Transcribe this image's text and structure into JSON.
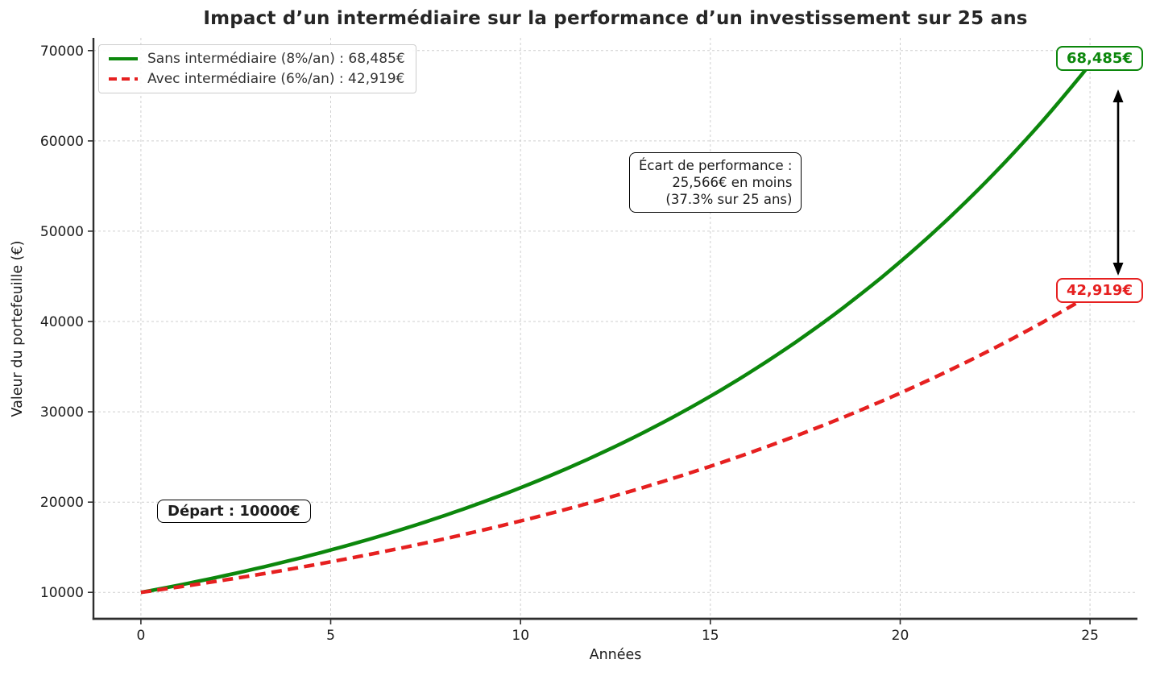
{
  "title": "Impact d’un intermédiaire sur la performance d’un investissement sur 25 ans",
  "axes": {
    "xlabel": "Années",
    "ylabel": "Valeur du portefeuille (€)"
  },
  "legend": {
    "items": [
      {
        "label": "Sans intermédiaire (8%/an) : 68,485€",
        "color": "#0c870c",
        "style": "solid"
      },
      {
        "label": "Avec intermédiaire (6%/an) : 42,919€",
        "color": "#e62020",
        "style": "dashed"
      }
    ]
  },
  "annotations": {
    "start": {
      "label": "Départ : 10000€"
    },
    "gap": {
      "lines": [
        "Écart de performance :",
        "25,566€ en moins",
        "(37.3% sur 25 ans)"
      ]
    },
    "end_high": {
      "label": "68,485€",
      "color": "#0c870c"
    },
    "end_low": {
      "label": "42,919€",
      "color": "#e62020"
    }
  },
  "chart_data": {
    "type": "line",
    "title": "Impact d’un intermédiaire sur la performance d’un investissement sur 25 ans",
    "xlabel": "Années",
    "ylabel": "Valeur du portefeuille (€)",
    "x": [
      0,
      1,
      2,
      3,
      4,
      5,
      6,
      7,
      8,
      9,
      10,
      11,
      12,
      13,
      14,
      15,
      16,
      17,
      18,
      19,
      20,
      21,
      22,
      23,
      24,
      25
    ],
    "series": [
      {
        "name": "Sans intermédiaire (8%/an)",
        "color": "#0c870c",
        "style": "solid",
        "final_value": 68485,
        "values": [
          10000,
          10800,
          11664,
          12597,
          13605,
          14693,
          15869,
          17138,
          18509,
          19990,
          21589,
          23316,
          25182,
          27196,
          29372,
          31722,
          34259,
          37000,
          39960,
          43157,
          46610,
          50338,
          54365,
          58715,
          63412,
          68485
        ]
      },
      {
        "name": "Avec intermédiaire (6%/an)",
        "color": "#e62020",
        "style": "dashed",
        "final_value": 42919,
        "values": [
          10000,
          10600,
          11236,
          11910,
          12625,
          13382,
          14185,
          15036,
          15938,
          16895,
          17908,
          18983,
          20122,
          21329,
          22609,
          23966,
          25404,
          26928,
          28543,
          30256,
          32071,
          33995,
          36035,
          38197,
          40489,
          42919
        ]
      }
    ],
    "xticks": [
      0,
      5,
      10,
      15,
      20,
      25
    ],
    "yticks": [
      10000,
      20000,
      30000,
      40000,
      50000,
      60000,
      70000
    ],
    "xlim": [
      -1.25,
      26.25
    ],
    "ylim": [
      7076,
      71409
    ],
    "grid": true,
    "legend_position": "upper left",
    "start_value": 10000,
    "gap_value": "25,566€ en moins (37.3% sur 25 ans)"
  }
}
